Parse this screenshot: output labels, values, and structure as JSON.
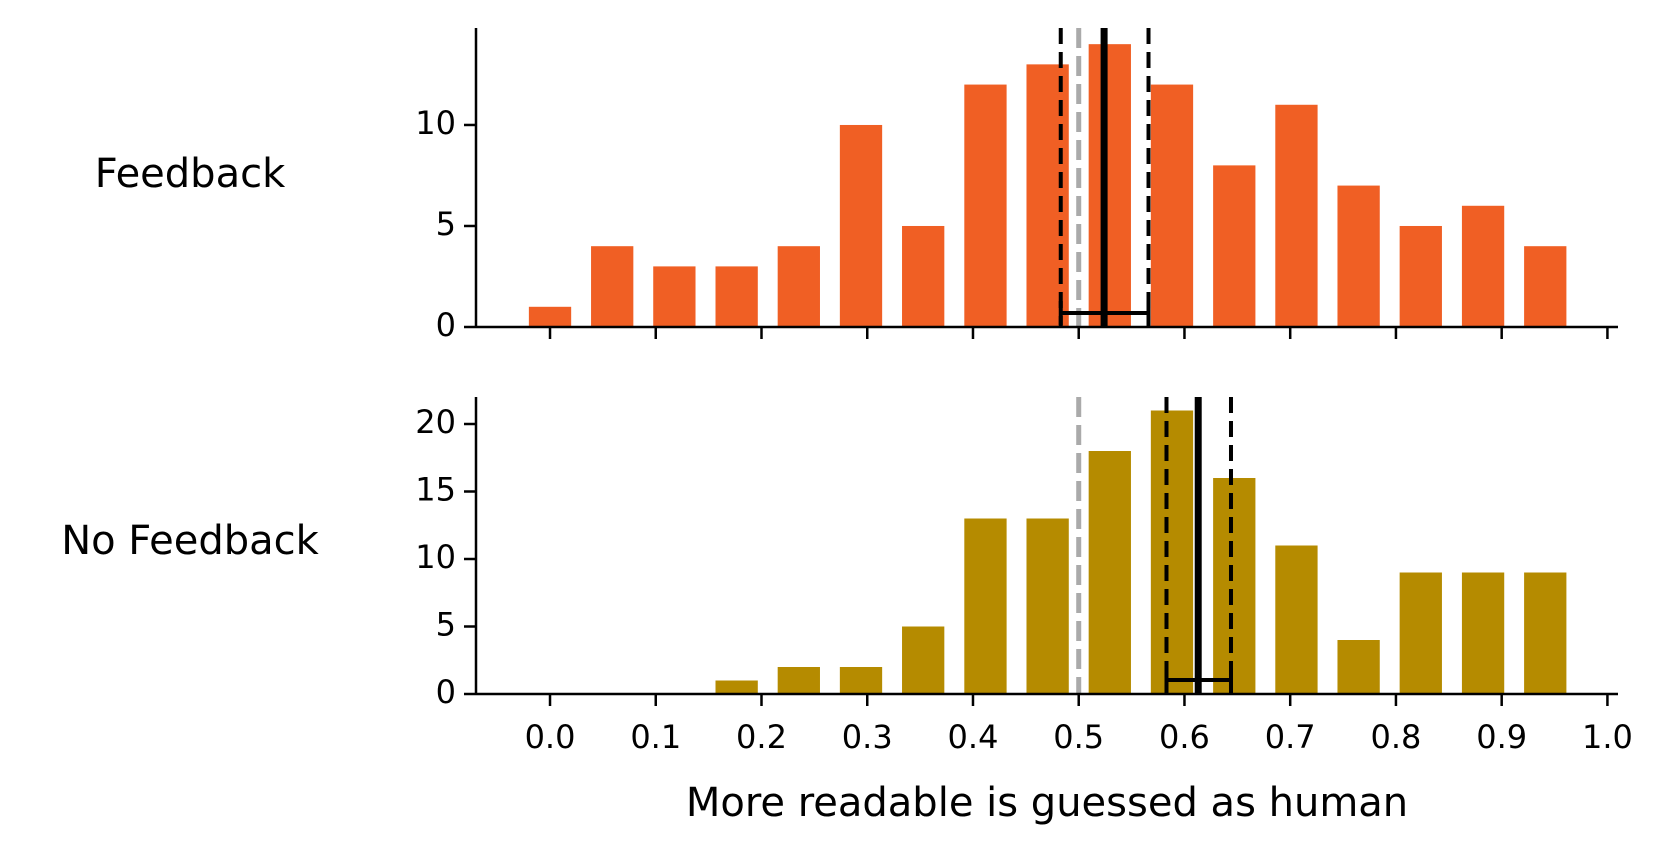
{
  "chart_data": [
    {
      "type": "bar",
      "row_label": "Feedback",
      "color": "#F05F24",
      "x": [
        0.0,
        0.0588,
        0.1176,
        0.1765,
        0.2353,
        0.2941,
        0.3529,
        0.4118,
        0.4706,
        0.5294,
        0.5882,
        0.6471,
        0.7059,
        0.7647,
        0.8235,
        0.8824,
        0.9412
      ],
      "values": [
        1,
        4,
        3,
        3,
        4,
        10,
        5,
        12,
        13,
        14,
        12,
        8,
        11,
        7,
        5,
        6,
        4
      ],
      "ylim": [
        0,
        14.8
      ],
      "yticks": [
        "0",
        "5",
        "10"
      ],
      "ytick_values": [
        0,
        5,
        10
      ],
      "show_xtick_labels": false,
      "reference_line": 0.5,
      "mean": 0.524,
      "ci": [
        0.483,
        0.566
      ]
    },
    {
      "type": "bar",
      "row_label": "No Feedback",
      "color": "#B58B00",
      "x": [
        0.0,
        0.0588,
        0.1176,
        0.1765,
        0.2353,
        0.2941,
        0.3529,
        0.4118,
        0.4706,
        0.5294,
        0.5882,
        0.6471,
        0.7059,
        0.7647,
        0.8235,
        0.8824,
        0.9412
      ],
      "values": [
        0,
        0,
        0,
        1,
        2,
        2,
        5,
        13,
        13,
        18,
        21,
        16,
        11,
        4,
        9,
        9,
        9
      ],
      "ylim": [
        0,
        22
      ],
      "yticks": [
        "0",
        "5",
        "10",
        "15",
        "20"
      ],
      "ytick_values": [
        0,
        5,
        10,
        15,
        20
      ],
      "show_xtick_labels": true,
      "reference_line": 0.5,
      "mean": 0.613,
      "ci": [
        0.583,
        0.644
      ]
    }
  ],
  "x_axis": {
    "xlim": [
      -0.07,
      1.01
    ],
    "tick_values": [
      0.0,
      0.1,
      0.2,
      0.3,
      0.4,
      0.5,
      0.6,
      0.7,
      0.8,
      0.9,
      1.0
    ],
    "tick_labels": [
      "0.0",
      "0.1",
      "0.2",
      "0.3",
      "0.4",
      "0.5",
      "0.6",
      "0.7",
      "0.8",
      "0.9",
      "1.0"
    ],
    "label": "More readable is guessed as human"
  },
  "bar_width": 0.04,
  "reference_color": "#AAAAAA",
  "stat_color": "#000000"
}
